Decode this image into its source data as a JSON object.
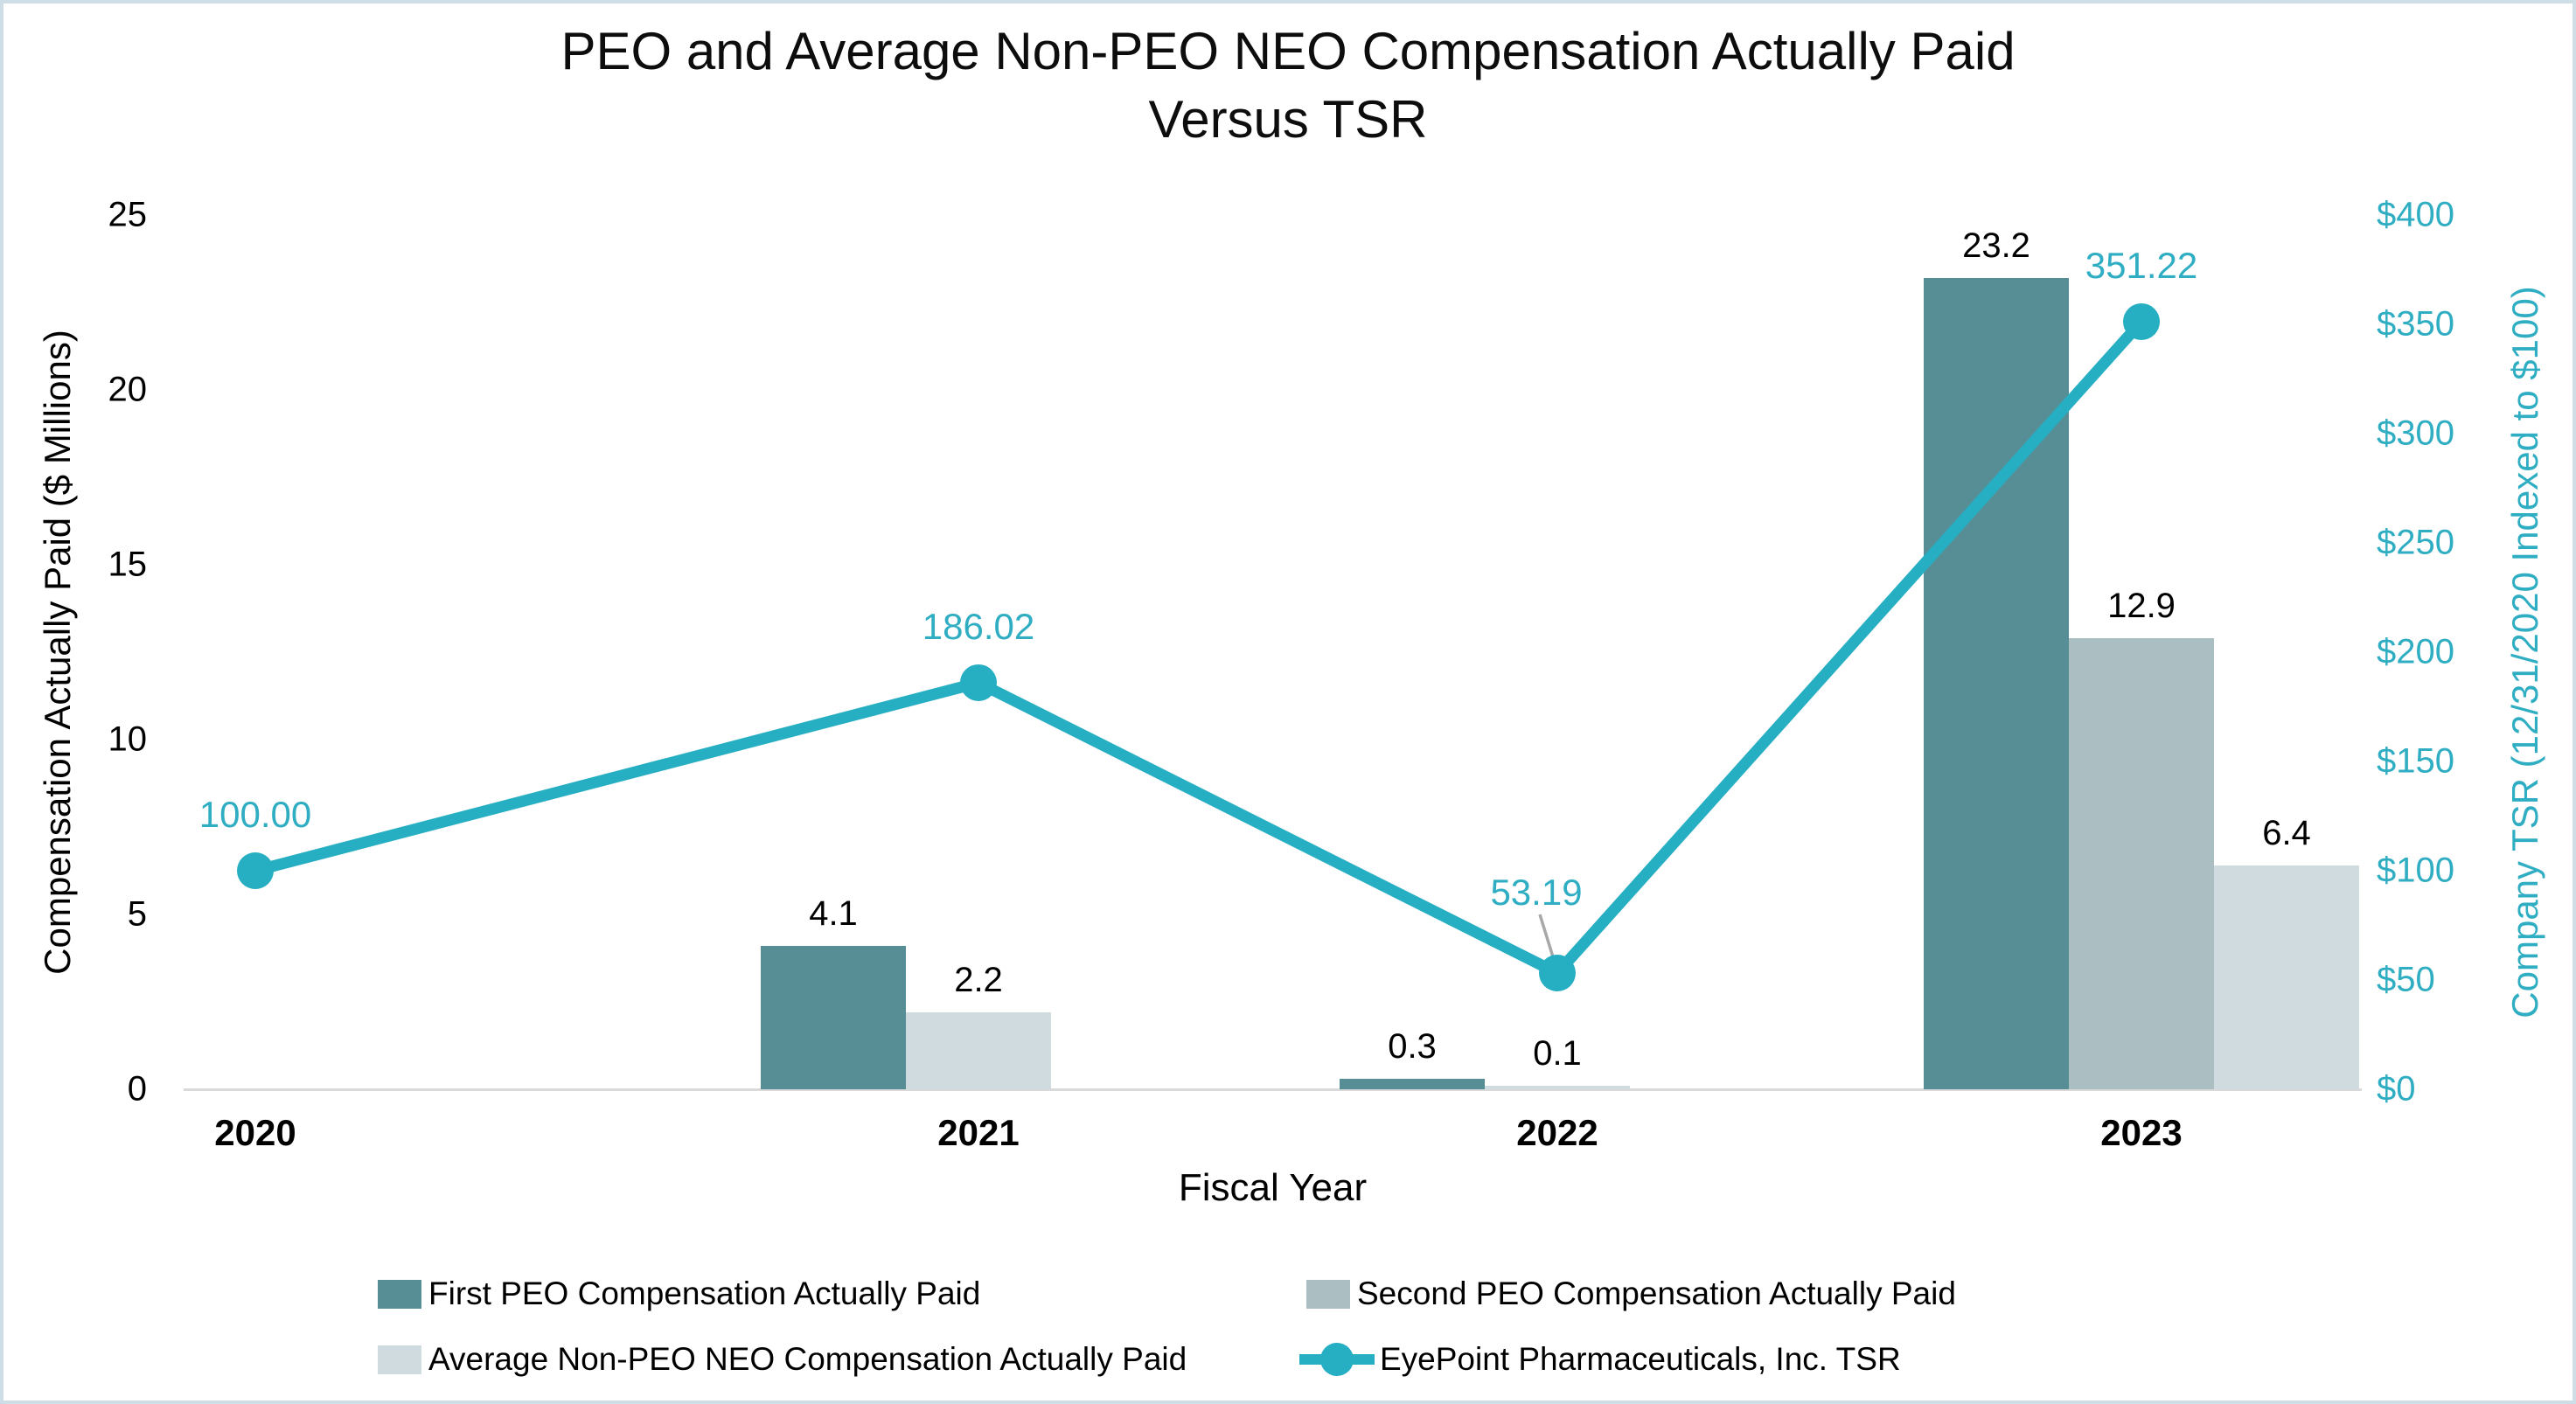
{
  "chart_data": {
    "type": "bar+line",
    "title": [
      "PEO and Average Non-PEO NEO Compensation Actually Paid",
      "Versus TSR"
    ],
    "x_axis": {
      "label": "Fiscal Year",
      "categories": [
        "2020",
        "2021",
        "2022",
        "2023"
      ]
    },
    "left_axis": {
      "label": "Compensation Actually Paid ($ Millions)",
      "range": [
        0,
        25
      ],
      "ticks": [
        {
          "v": 0,
          "t": "0"
        },
        {
          "v": 5,
          "t": "5"
        },
        {
          "v": 10,
          "t": "10"
        },
        {
          "v": 15,
          "t": "15"
        },
        {
          "v": 20,
          "t": "20"
        },
        {
          "v": 25,
          "t": "25"
        }
      ]
    },
    "right_axis": {
      "label": "Company TSR (12/31/2020 Indexed to $100)",
      "range": [
        0,
        400
      ],
      "ticks": [
        {
          "v": 0,
          "t": "$0"
        },
        {
          "v": 50,
          "t": "$50"
        },
        {
          "v": 100,
          "t": "$100"
        },
        {
          "v": 150,
          "t": "$150"
        },
        {
          "v": 200,
          "t": "$200"
        },
        {
          "v": 250,
          "t": "$250"
        },
        {
          "v": 300,
          "t": "$300"
        },
        {
          "v": 350,
          "t": "$350"
        },
        {
          "v": 400,
          "t": "$400"
        }
      ]
    },
    "bar_series": [
      {
        "name": "First PEO Compensation Actually Paid",
        "color": "#578e96",
        "values": [
          null,
          4.1,
          0.3,
          23.2
        ],
        "labels": [
          null,
          "4.1",
          "0.3",
          "23.2"
        ]
      },
      {
        "name": "Second PEO Compensation Actually Paid",
        "color": "#abbfc3",
        "values": [
          null,
          null,
          null,
          12.9
        ],
        "labels": [
          null,
          null,
          null,
          "12.9"
        ]
      },
      {
        "name": "Average Non-PEO NEO Compensation Actually Paid",
        "color": "#cfdbde",
        "values": [
          null,
          2.2,
          0.1,
          6.4
        ],
        "labels": [
          null,
          "2.2",
          "0.1",
          "6.4"
        ]
      }
    ],
    "line_series": {
      "name": "EyePoint Pharmaceuticals, Inc. TSR",
      "color": "#26aec3",
      "values": [
        100.0,
        186.02,
        53.19,
        351.22
      ],
      "labels": [
        "100.00",
        "186.02",
        "53.19",
        "351.22"
      ]
    },
    "colors": {
      "axis_line": "#d9d9d9",
      "leader_line": "#a8a8a8",
      "teal_text": "#2fadc2",
      "border": "#cfdde6"
    }
  }
}
